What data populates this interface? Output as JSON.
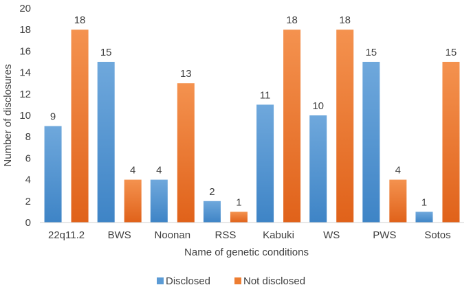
{
  "chart_data": {
    "type": "bar",
    "title": "",
    "xlabel": "Name of genetic conditions",
    "ylabel": "Number  of disclosures",
    "ylim": [
      0,
      20
    ],
    "ytick_step": 2,
    "grid": false,
    "legend_position": "bottom",
    "categories": [
      "22q11.2",
      "BWS",
      "Noonan",
      "RSS",
      "Kabuki",
      "WS",
      "PWS",
      "Sotos"
    ],
    "series": [
      {
        "name": "Disclosed",
        "color": "#5B9BD5",
        "values": [
          9,
          15,
          4,
          2,
          11,
          10,
          15,
          1
        ]
      },
      {
        "name": "Not disclosed",
        "color": "#ED7D31",
        "values": [
          18,
          4,
          13,
          1,
          18,
          18,
          4,
          15
        ]
      }
    ]
  }
}
